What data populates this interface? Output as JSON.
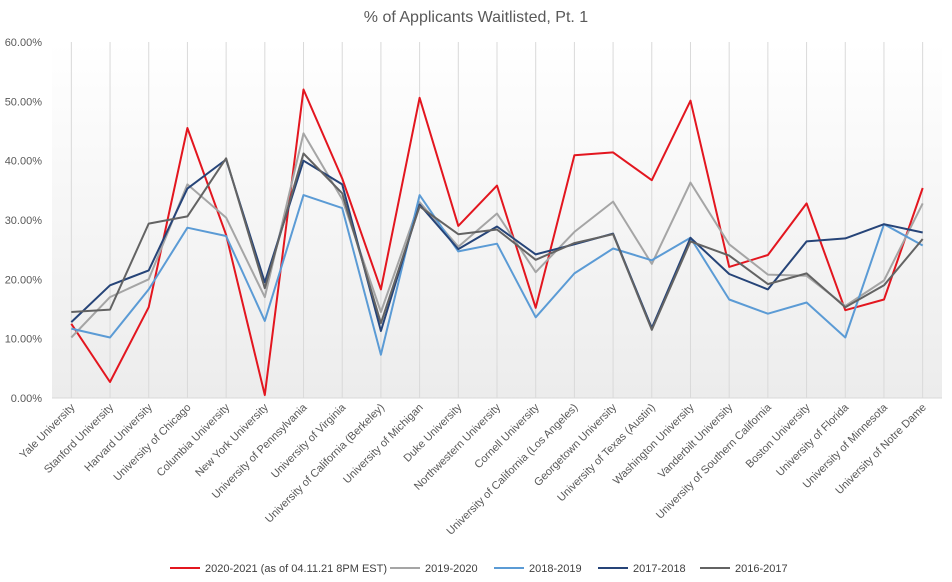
{
  "chart_data": {
    "type": "line",
    "title": "% of Applicants Waitlisted, Pt. 1",
    "xlabel": "",
    "ylabel": "",
    "ylim": [
      0,
      60
    ],
    "y_ticks": [
      "0.00%",
      "10.00%",
      "20.00%",
      "30.00%",
      "40.00%",
      "50.00%",
      "60.00%"
    ],
    "grid": "vertical",
    "legend_position": "bottom",
    "categories": [
      "Yale University",
      "Stanford University",
      "Harvard University",
      "University of Chicago",
      "Columbia University",
      "New York University",
      "University of Pennsylvania",
      "University of Virginia",
      "University of California (Berkeley)",
      "University of Michigan",
      "Duke University",
      "Northwestern University",
      "Cornell University",
      "University of California (Los Angeles)",
      "Georgetown University",
      "University of Texas (Austin)",
      "Washington University",
      "Vanderbilt University",
      "University of Southern California",
      "Boston University",
      "University of Florida",
      "University of Minnesota",
      "University of Notre Dame"
    ],
    "series": [
      {
        "name": "2020-2021 (as of 04.11.21 8PM EST)",
        "color": "#e3161f",
        "values": [
          12.5,
          2.7,
          15.3,
          45.5,
          27.5,
          0.5,
          52.0,
          37.0,
          18.3,
          50.6,
          29.0,
          35.8,
          15.2,
          40.9,
          41.4,
          36.7,
          50.1,
          22.1,
          24.1,
          32.8,
          14.8,
          16.6,
          35.4
        ]
      },
      {
        "name": "2019-2020",
        "color": "#a5a5a5",
        "values": [
          10.2,
          17.0,
          20.0,
          36.0,
          30.4,
          17.0,
          44.6,
          33.5,
          14.5,
          33.0,
          25.5,
          31.1,
          21.2,
          28.0,
          33.1,
          22.6,
          36.3,
          25.9,
          20.8,
          20.6,
          15.5,
          19.8,
          32.8
        ]
      },
      {
        "name": "2018-2019",
        "color": "#5b9bd5",
        "values": [
          11.7,
          10.2,
          18.3,
          28.7,
          27.3,
          13.0,
          34.2,
          32.0,
          7.3,
          34.2,
          24.7,
          26.0,
          13.6,
          21.0,
          25.2,
          23.2,
          27.0,
          16.6,
          14.2,
          16.1,
          10.2,
          29.3,
          25.7
        ]
      },
      {
        "name": "2017-2018",
        "color": "#264478",
        "values": [
          12.8,
          19.0,
          21.5,
          35.3,
          40.2,
          19.5,
          40.0,
          36.0,
          11.3,
          32.6,
          25.1,
          28.9,
          24.2,
          25.9,
          27.7,
          11.8,
          27.0,
          20.9,
          18.3,
          26.4,
          26.9,
          29.3,
          27.9
        ]
      },
      {
        "name": "2016-2017",
        "color": "#636363",
        "values": [
          14.5,
          14.9,
          29.4,
          30.6,
          40.4,
          18.5,
          41.2,
          34.5,
          12.6,
          32.3,
          27.6,
          28.4,
          23.3,
          26.1,
          27.6,
          11.5,
          26.4,
          24.0,
          19.2,
          21.0,
          15.3,
          19.0,
          26.8
        ]
      }
    ]
  }
}
